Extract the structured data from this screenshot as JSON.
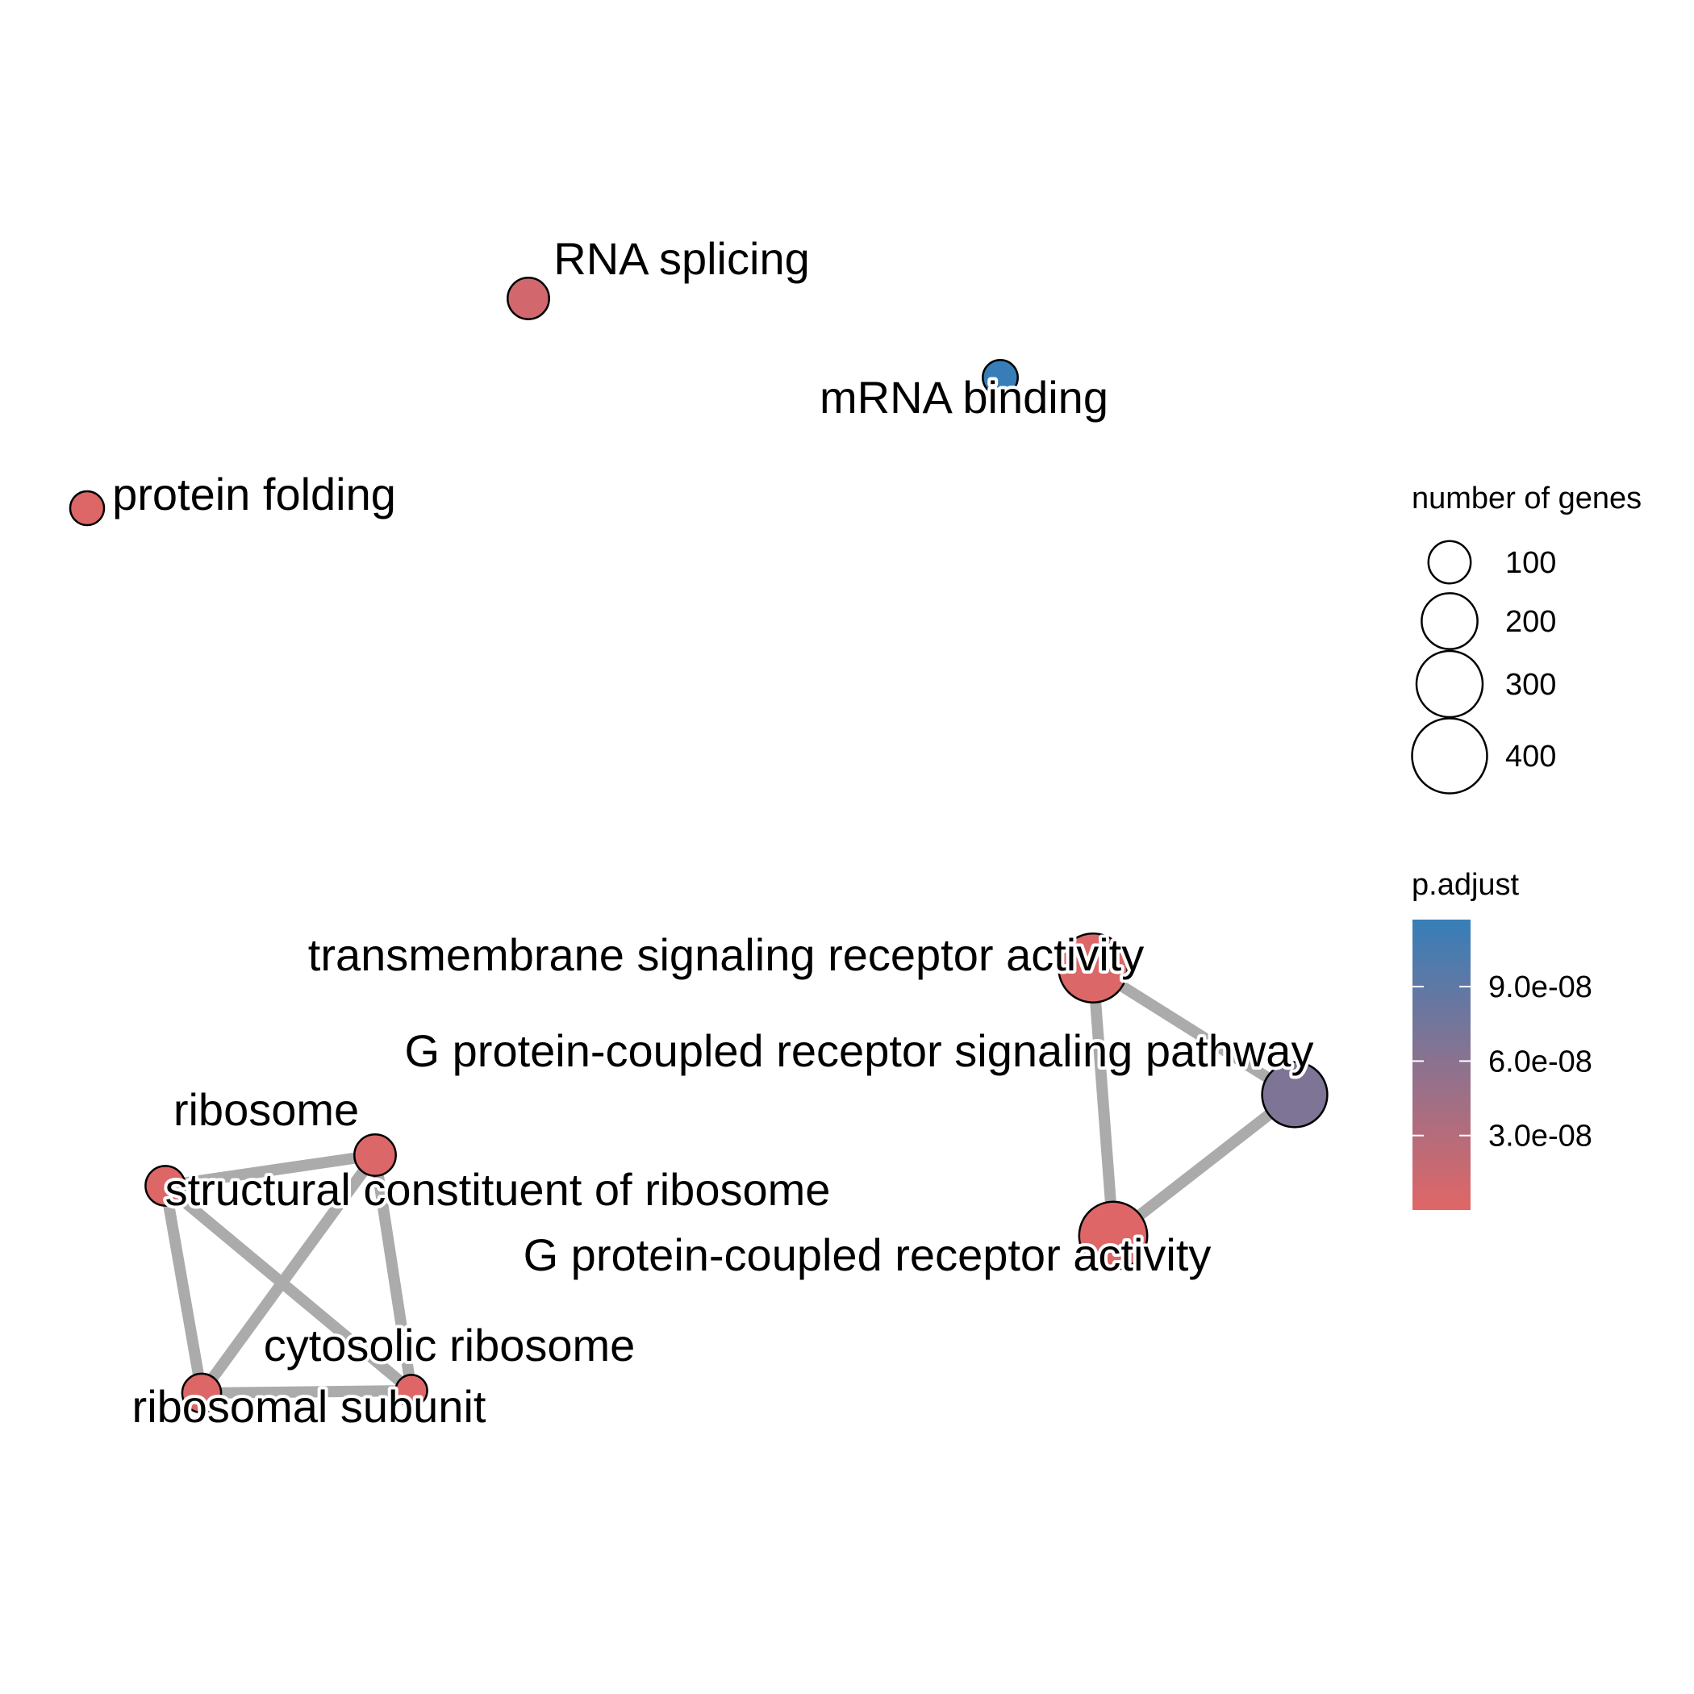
{
  "colors": {
    "edge": "#ababab",
    "low": "#e06666",
    "high": "#377eb8",
    "node_stroke": "#000000"
  },
  "nodes": [
    {
      "id": "rna",
      "label": "RNA splicing",
      "genes": 95,
      "p_adjust": 1e-08
    },
    {
      "id": "mrna",
      "label": "mRNA binding",
      "genes": 60,
      "p_adjust": 1.2e-07
    },
    {
      "id": "fold",
      "label": "protein folding",
      "genes": 55,
      "p_adjust": 2e-09
    },
    {
      "id": "tmsra",
      "label": "transmembrane signaling receptor activity",
      "genes": 330,
      "p_adjust": 3e-09
    },
    {
      "id": "gpcrp",
      "label": "G protein-coupled receptor signaling pathway",
      "genes": 290,
      "p_adjust": 7e-08
    },
    {
      "id": "gpcra",
      "label": "G protein-coupled receptor activity",
      "genes": 320,
      "p_adjust": 1e-09
    },
    {
      "id": "ribo",
      "label": "ribosome",
      "genes": 95,
      "p_adjust": 3e-09
    },
    {
      "id": "scr",
      "label": "structural constituent of ribosome",
      "genes": 85,
      "p_adjust": 2e-09
    },
    {
      "id": "cyto",
      "label": "cytosolic ribosome",
      "genes": 45,
      "p_adjust": 1e-09
    },
    {
      "id": "subu",
      "label": "ribosomal subunit",
      "genes": 80,
      "p_adjust": 2e-09
    }
  ],
  "edges": [
    {
      "from": "tmsra",
      "to": "gpcrp"
    },
    {
      "from": "tmsra",
      "to": "gpcra"
    },
    {
      "from": "gpcrp",
      "to": "gpcra"
    },
    {
      "from": "scr",
      "to": "ribo"
    },
    {
      "from": "scr",
      "to": "subu"
    },
    {
      "from": "scr",
      "to": "cyto"
    },
    {
      "from": "ribo",
      "to": "subu"
    },
    {
      "from": "ribo",
      "to": "cyto"
    },
    {
      "from": "subu",
      "to": "cyto"
    }
  ],
  "legend": {
    "size_title": "number of genes",
    "size_items": [
      {
        "label": "100",
        "genes": 100
      },
      {
        "label": "200",
        "genes": 200
      },
      {
        "label": "300",
        "genes": 300
      },
      {
        "label": "400",
        "genes": 400
      }
    ],
    "color_title": "p.adjust",
    "color_ticks": [
      {
        "label": "9.0e-08",
        "value": 9e-08
      },
      {
        "label": "6.0e-08",
        "value": 6e-08
      },
      {
        "label": "3.0e-08",
        "value": 3e-08
      }
    ]
  }
}
